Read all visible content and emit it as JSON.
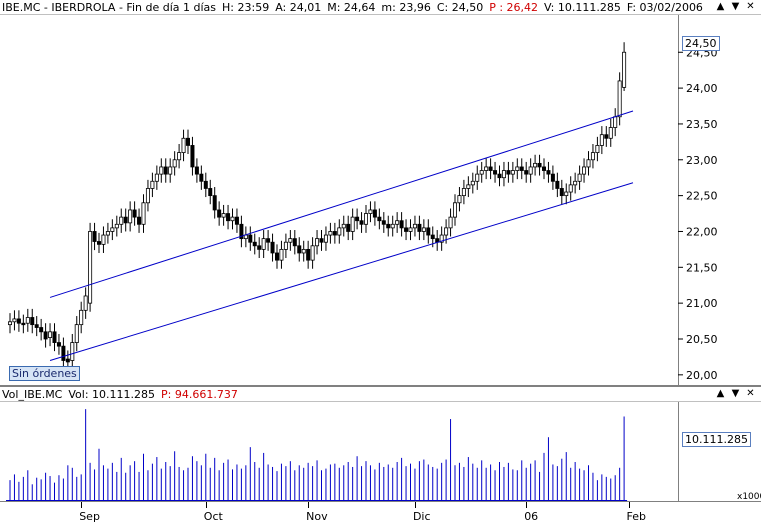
{
  "price_header": {
    "symbol": "IBE.MC",
    "name": "IBERDROLA",
    "period": "Fin de día 1 días",
    "H": "H: 23:59",
    "A": "A: 24,01",
    "M": "M: 24,64",
    "m": "m: 23,96",
    "C": "C: 24,50",
    "P": "P : 26,42",
    "V": "V: 10.111.285",
    "F": "F: 03/02/2006"
  },
  "volume_header": {
    "name": "Vol_IBE.MC",
    "vol": "Vol: 10.111.285",
    "P": "P: 94.661.737"
  },
  "window_buttons": [
    "▲",
    "▼",
    "✕"
  ],
  "orders_label": "Sin órdenes",
  "last_price_badge": "24,50",
  "last_volume_badge": "10.111.285",
  "volume_unit": "x1000",
  "colors": {
    "channel": "#0000c8",
    "volume": "#0000c8",
    "candle": "#000000"
  },
  "chart_data": [
    {
      "type": "candlestick",
      "title": "IBE.MC - IBERDROLA",
      "ylim": [
        19.9,
        24.95
      ],
      "y_ticks": [
        "20,00",
        "20,50",
        "21,00",
        "21,50",
        "22,00",
        "22,50",
        "23,00",
        "23,50",
        "24,00",
        "24,50"
      ],
      "y_tick_values": [
        20.0,
        20.5,
        21.0,
        21.5,
        22.0,
        22.5,
        23.0,
        23.5,
        24.0,
        24.5
      ],
      "x_ticks": [
        "Sep",
        "Oct",
        "Nov",
        "Dic",
        "06",
        "Feb"
      ],
      "x_tick_index": [
        16,
        44,
        67,
        91,
        116,
        139
      ],
      "close": [
        20.74,
        20.78,
        20.72,
        20.7,
        20.8,
        20.7,
        20.66,
        20.6,
        20.5,
        20.6,
        20.45,
        20.4,
        20.2,
        20.18,
        20.45,
        20.7,
        20.9,
        21.1,
        22.0,
        21.86,
        21.82,
        21.95,
        22.0,
        22.05,
        22.1,
        22.2,
        22.12,
        22.3,
        22.2,
        22.1,
        22.4,
        22.6,
        22.7,
        22.8,
        22.9,
        22.8,
        22.9,
        23.0,
        23.1,
        23.3,
        23.2,
        22.9,
        22.8,
        22.7,
        22.6,
        22.5,
        22.3,
        22.2,
        22.25,
        22.15,
        22.2,
        22.1,
        21.9,
        21.95,
        21.85,
        21.8,
        21.75,
        21.9,
        21.85,
        21.7,
        21.6,
        21.75,
        21.85,
        21.9,
        21.8,
        21.7,
        21.75,
        21.6,
        21.8,
        21.9,
        21.85,
        21.95,
        22.0,
        21.95,
        22.05,
        22.1,
        22.0,
        22.2,
        22.15,
        22.1,
        22.25,
        22.3,
        22.2,
        22.15,
        22.1,
        22.05,
        22.1,
        22.15,
        22.05,
        22.0,
        22.05,
        22.1,
        22.0,
        22.05,
        21.95,
        21.9,
        21.85,
        21.95,
        22.05,
        22.2,
        22.4,
        22.5,
        22.6,
        22.65,
        22.7,
        22.8,
        22.85,
        22.9,
        22.85,
        22.8,
        22.75,
        22.85,
        22.8,
        22.85,
        22.9,
        22.85,
        22.8,
        22.9,
        22.95,
        22.9,
        22.85,
        22.8,
        22.7,
        22.6,
        22.5,
        22.55,
        22.65,
        22.7,
        22.8,
        22.9,
        23.0,
        23.1,
        23.2,
        23.35,
        23.3,
        23.45,
        23.6,
        24.1,
        24.5
      ],
      "open": [
        20.7,
        20.74,
        20.78,
        20.72,
        20.72,
        20.8,
        20.7,
        20.66,
        20.6,
        20.52,
        20.6,
        20.45,
        20.4,
        20.22,
        20.2,
        20.45,
        20.7,
        20.9,
        21.0,
        22.0,
        21.86,
        21.82,
        21.95,
        22.0,
        22.05,
        22.1,
        22.2,
        22.12,
        22.3,
        22.2,
        22.1,
        22.4,
        22.6,
        22.7,
        22.8,
        22.9,
        22.8,
        22.9,
        23.0,
        23.1,
        23.3,
        23.2,
        22.9,
        22.8,
        22.7,
        22.6,
        22.5,
        22.3,
        22.2,
        22.25,
        22.15,
        22.2,
        22.1,
        21.9,
        21.95,
        21.85,
        21.8,
        21.75,
        21.9,
        21.85,
        21.7,
        21.6,
        21.75,
        21.85,
        21.9,
        21.8,
        21.7,
        21.75,
        21.6,
        21.8,
        21.9,
        21.85,
        21.95,
        22.0,
        21.95,
        22.05,
        22.1,
        22.0,
        22.2,
        22.15,
        22.1,
        22.25,
        22.3,
        22.2,
        22.15,
        22.1,
        22.05,
        22.1,
        22.15,
        22.05,
        22.0,
        22.05,
        22.1,
        22.0,
        22.05,
        21.95,
        21.9,
        21.85,
        21.95,
        22.05,
        22.2,
        22.4,
        22.5,
        22.6,
        22.65,
        22.7,
        22.8,
        22.85,
        22.9,
        22.85,
        22.8,
        22.75,
        22.85,
        22.8,
        22.85,
        22.9,
        22.85,
        22.8,
        22.9,
        22.95,
        22.9,
        22.85,
        22.8,
        22.7,
        22.6,
        22.5,
        22.55,
        22.65,
        22.7,
        22.8,
        22.9,
        23.0,
        23.1,
        23.2,
        23.35,
        23.3,
        23.45,
        23.6,
        24.01
      ],
      "high_offset": 0.12,
      "low_offset": 0.12,
      "last": {
        "open": 24.01,
        "high": 24.64,
        "low": 23.96,
        "close": 24.5
      },
      "channel": {
        "upper": [
          [
            9,
            21.08
          ],
          [
            140,
            23.68
          ]
        ],
        "lower": [
          [
            9,
            20.2
          ],
          [
            140,
            22.68
          ]
        ]
      }
    },
    {
      "type": "bar",
      "title": "Vol_IBE.MC",
      "unit": "x1000",
      "ylim": [
        0,
        11500
      ],
      "volume": [
        2400,
        3100,
        2200,
        2800,
        3600,
        1900,
        2700,
        2500,
        3300,
        2900,
        2100,
        3000,
        2600,
        4200,
        3900,
        2800,
        3100,
        11000,
        4500,
        3700,
        6200,
        4200,
        3800,
        4500,
        3400,
        5100,
        3300,
        4200,
        4700,
        3400,
        5600,
        3600,
        4400,
        5200,
        3800,
        4600,
        4100,
        5900,
        4000,
        3600,
        3900,
        5300,
        4700,
        4200,
        5600,
        3900,
        5100,
        3600,
        4500,
        4900,
        3700,
        4300,
        3800,
        4200,
        6400,
        4600,
        3900,
        5700,
        4300,
        4000,
        3500,
        4400,
        4100,
        4700,
        3600,
        4200,
        3900,
        4500,
        4100,
        4800,
        3600,
        3800,
        4300,
        4400,
        3900,
        4200,
        4600,
        4000,
        5300,
        4100,
        4700,
        4200,
        3700,
        4500,
        4000,
        4300,
        3900,
        4600,
        5100,
        4100,
        4400,
        3800,
        4700,
        4900,
        4300,
        4000,
        3800,
        4500,
        4900,
        9800,
        4200,
        4500,
        4000,
        5200,
        4400,
        3900,
        4800,
        3900,
        4300,
        3600,
        4600,
        4000,
        4500,
        3700,
        3600,
        4800,
        3900,
        4400,
        4800,
        3400,
        5700,
        7600,
        4300,
        4100,
        5000,
        5800,
        3900,
        4600,
        3800,
        3600,
        4200,
        3300,
        2400,
        3100,
        2800,
        2600,
        3000,
        3900,
        10111
      ]
    }
  ]
}
